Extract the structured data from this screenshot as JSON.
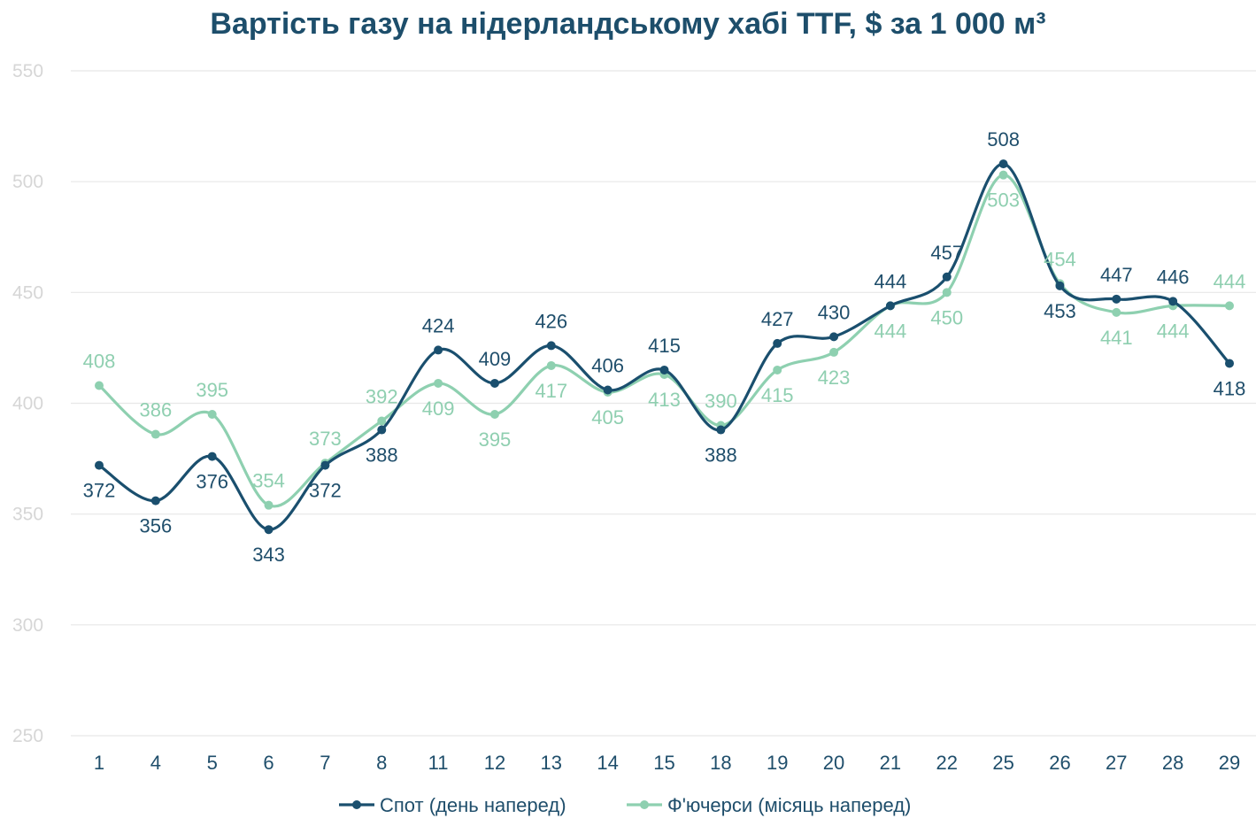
{
  "chart_data": {
    "type": "line",
    "title": "Вартість газу на нідерландському хабі TTF, $ за 1 000 м³",
    "x": [
      "1",
      "4",
      "5",
      "6",
      "7",
      "8",
      "11",
      "12",
      "13",
      "14",
      "15",
      "18",
      "19",
      "20",
      "21",
      "22",
      "25",
      "26",
      "27",
      "28",
      "29"
    ],
    "ylim": [
      250,
      550
    ],
    "yticks": [
      250,
      300,
      350,
      400,
      450,
      500,
      550
    ],
    "grid": true,
    "legend_position": "bottom",
    "series": [
      {
        "name": "Спот (день наперед)",
        "color": "#1a4f6e",
        "values": [
          372,
          356,
          376,
          343,
          372,
          388,
          424,
          409,
          426,
          406,
          415,
          388,
          427,
          430,
          444,
          457,
          508,
          453,
          447,
          446,
          418
        ]
      },
      {
        "name": "Ф'ючерси (місяць наперед)",
        "color": "#8ed0b0",
        "values": [
          408,
          386,
          395,
          354,
          373,
          392,
          409,
          395,
          417,
          405,
          413,
          390,
          415,
          423,
          444,
          450,
          503,
          454,
          441,
          444,
          444
        ]
      }
    ],
    "data_labels": {
      "s1": [
        "372",
        "356",
        "376",
        "343",
        "372",
        "388",
        "424",
        "409",
        "426",
        "406",
        "415",
        "388",
        "427",
        "430",
        "444",
        "457",
        "508",
        "453",
        "447",
        "446",
        "418"
      ],
      "s2": [
        "408",
        "386",
        "395",
        "354",
        "373",
        "392",
        "409",
        "395",
        "417",
        "405",
        "413",
        "390",
        "415",
        "423",
        "444",
        "450",
        "503",
        "454",
        "441",
        "444",
        "444"
      ]
    }
  }
}
